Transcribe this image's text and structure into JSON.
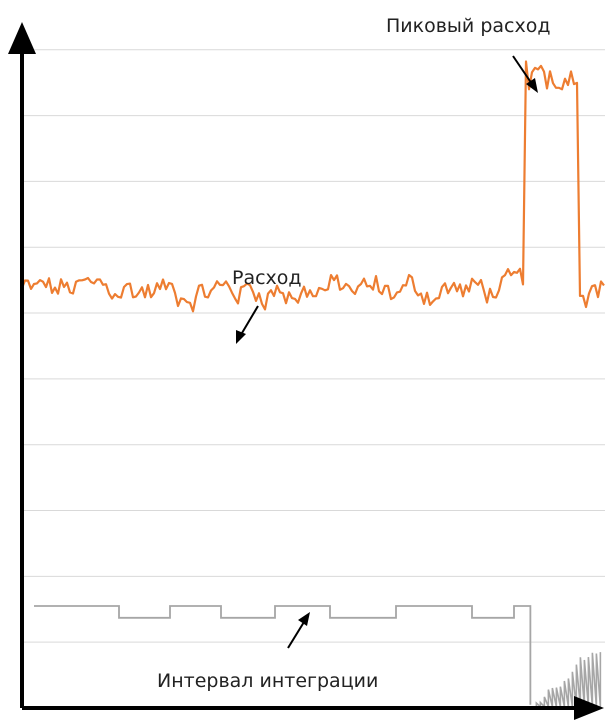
{
  "chart_data": {
    "type": "line",
    "title": "",
    "xlabel": "",
    "ylabel": "",
    "grid": true,
    "annotations": {
      "flow": "Расход",
      "peak": "Пиковый расход",
      "interval": "Интервал интеграции"
    },
    "series": [
      {
        "name": "Расход",
        "color": "#ed7d31",
        "base": 6.35,
        "peak_start": 0.86,
        "peak_end": 0.955,
        "peak_level": 9.6
      },
      {
        "name": "Интервал интеграции",
        "color": "#a6a6a6",
        "base": 1.55,
        "drop_start": 0.872
      }
    ],
    "y_gridlines": [
      1,
      2,
      3,
      4,
      5,
      6,
      7,
      8,
      9,
      10
    ],
    "ylim": [
      0,
      10.3
    ],
    "xlim": [
      0,
      1
    ]
  }
}
